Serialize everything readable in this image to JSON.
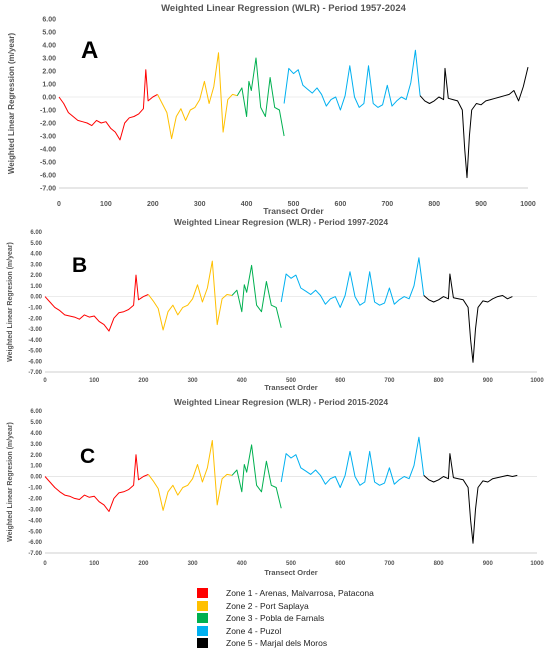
{
  "chart_data": [
    {
      "type": "line",
      "panel_letter": "A",
      "title": "Weighted Linear Regression (WLR) - Period 1957-2024",
      "xlabel": "Transect Order",
      "ylabel": "Weighted Linear Regression (m/year)",
      "xlim": [
        0,
        1000
      ],
      "ylim": [
        -7,
        6
      ],
      "x_ticks": [
        "0",
        "100",
        "200",
        "300",
        "400",
        "500",
        "600",
        "700",
        "800",
        "900",
        "1000"
      ],
      "y_ticks": [
        "6.00",
        "5.00",
        "4.00",
        "3.00",
        "2.00",
        "1.00",
        "0.00",
        "-1.00",
        "-2.00",
        "-3.00",
        "-4.00",
        "-5.00",
        "-6.00",
        "-7.00"
      ],
      "series": [
        {
          "name": "Zone 1 - Arenas, Malvarrosa, Patacona",
          "color": "#ff0000",
          "x": [
            0,
            10,
            20,
            30,
            40,
            50,
            60,
            70,
            80,
            90,
            100,
            110,
            120,
            130,
            140,
            150,
            160,
            170,
            180,
            185,
            190,
            200,
            210
          ],
          "y": [
            0.0,
            -0.5,
            -1.2,
            -1.5,
            -1.8,
            -1.9,
            -2.0,
            -2.2,
            -1.8,
            -2.0,
            -1.9,
            -2.4,
            -2.7,
            -3.3,
            -2.0,
            -1.6,
            -1.5,
            -1.3,
            -0.9,
            2.1,
            -0.3,
            0.0,
            0.2
          ]
        },
        {
          "name": "Zone 2 - Port Saplaya",
          "color": "#ffc000",
          "x": [
            210,
            220,
            230,
            240,
            250,
            260,
            270,
            280,
            290,
            300,
            310,
            320,
            330,
            340,
            350,
            360,
            370,
            380
          ],
          "y": [
            0.2,
            -0.5,
            -1.2,
            -3.2,
            -1.5,
            -0.9,
            -1.8,
            -1.0,
            -0.8,
            -0.2,
            1.2,
            -0.5,
            0.8,
            3.4,
            -2.7,
            -0.2,
            0.2,
            0.1
          ]
        },
        {
          "name": "Zone 3 - Pobla de Farnals",
          "color": "#00b050",
          "x": [
            380,
            390,
            400,
            405,
            410,
            420,
            430,
            440,
            450,
            460,
            470,
            480
          ],
          "y": [
            0.1,
            0.7,
            -1.5,
            1.2,
            0.5,
            3.0,
            -0.8,
            -1.5,
            1.5,
            -0.8,
            -1.0,
            -3.0
          ]
        },
        {
          "name": "Zone 4 - Puzol",
          "color": "#00b0f0",
          "x": [
            480,
            490,
            500,
            510,
            520,
            530,
            540,
            550,
            560,
            570,
            580,
            590,
            600,
            610,
            620,
            630,
            640,
            650,
            660,
            670,
            680,
            690,
            700,
            710,
            720,
            730,
            740,
            750,
            760,
            770
          ],
          "y": [
            -0.5,
            2.2,
            1.8,
            2.1,
            0.9,
            0.6,
            0.3,
            0.7,
            0.2,
            -0.7,
            -0.2,
            0.0,
            -1.0,
            0.1,
            2.4,
            0.0,
            -0.8,
            -0.5,
            2.4,
            -0.5,
            -0.8,
            -0.6,
            0.9,
            -0.7,
            -0.3,
            0.0,
            -0.2,
            1.1,
            3.6,
            0.1
          ]
        },
        {
          "name": "Zone 5 - Marjal dels Moros",
          "color": "#000000",
          "x": [
            770,
            780,
            790,
            800,
            810,
            820,
            823,
            830,
            840,
            850,
            860,
            865,
            870,
            875,
            880,
            890,
            900,
            910,
            920,
            930,
            940,
            950,
            960,
            970,
            980,
            990,
            1000
          ],
          "y": [
            0.1,
            -0.3,
            -0.5,
            -0.3,
            0.0,
            -0.2,
            2.2,
            -0.1,
            -0.2,
            -0.3,
            -1.0,
            -4.0,
            -6.2,
            -3.0,
            -1.0,
            -0.5,
            -0.6,
            -0.3,
            -0.2,
            -0.1,
            0.0,
            0.1,
            0.2,
            0.5,
            -0.3,
            0.8,
            2.3
          ]
        }
      ]
    },
    {
      "type": "line",
      "panel_letter": "B",
      "title": "Weighted Linear Regresion (WLR) - Period 1997-2024",
      "xlabel": "Transect Order",
      "ylabel": "Weighted Linear Regresion (m/year)",
      "xlim": [
        0,
        1000
      ],
      "ylim": [
        -7,
        6
      ],
      "x_ticks": [
        "0",
        "100",
        "200",
        "300",
        "400",
        "500",
        "600",
        "700",
        "800",
        "900",
        "1000"
      ],
      "y_ticks": [
        "6.00",
        "5.00",
        "4.00",
        "3.00",
        "2.00",
        "1.00",
        "0.00",
        "-1.00",
        "-2.00",
        "-3.00",
        "-4.00",
        "-5.00",
        "-6.00",
        "-7.00"
      ],
      "series": [
        {
          "name": "Zone 1 - Arenas, Malvarrosa, Patacona",
          "color": "#ff0000",
          "x": [
            0,
            10,
            20,
            30,
            40,
            50,
            60,
            70,
            80,
            90,
            100,
            110,
            120,
            130,
            140,
            150,
            160,
            170,
            180,
            185,
            190,
            200,
            210
          ],
          "y": [
            0.0,
            -0.5,
            -1.0,
            -1.3,
            -1.7,
            -1.8,
            -1.9,
            -2.1,
            -1.7,
            -1.9,
            -1.8,
            -2.3,
            -2.6,
            -3.2,
            -2.0,
            -1.5,
            -1.4,
            -1.2,
            -0.8,
            2.0,
            -0.3,
            0.0,
            0.2
          ]
        },
        {
          "name": "Zone 2 - Port Saplaya",
          "color": "#ffc000",
          "x": [
            210,
            220,
            230,
            240,
            250,
            260,
            270,
            280,
            290,
            300,
            310,
            320,
            330,
            340,
            350,
            360,
            370,
            380
          ],
          "y": [
            0.2,
            -0.4,
            -1.1,
            -3.1,
            -1.4,
            -0.8,
            -1.7,
            -1.0,
            -0.8,
            -0.2,
            1.1,
            -0.5,
            0.8,
            3.3,
            -2.6,
            -0.2,
            0.2,
            0.1
          ]
        },
        {
          "name": "Zone 3 - Pobla de Farnals",
          "color": "#00b050",
          "x": [
            380,
            390,
            400,
            405,
            410,
            420,
            430,
            440,
            450,
            460,
            470,
            480
          ],
          "y": [
            0.1,
            0.6,
            -1.4,
            1.1,
            0.4,
            2.9,
            -0.8,
            -1.4,
            1.4,
            -0.8,
            -1.0,
            -2.9
          ]
        },
        {
          "name": "Zone 4 - Puzol",
          "color": "#00b0f0",
          "x": [
            480,
            490,
            500,
            510,
            520,
            530,
            540,
            550,
            560,
            570,
            580,
            590,
            600,
            610,
            620,
            630,
            640,
            650,
            660,
            670,
            680,
            690,
            700,
            710,
            720,
            730,
            740,
            750,
            760,
            770
          ],
          "y": [
            -0.5,
            2.1,
            1.7,
            2.0,
            0.8,
            0.5,
            0.2,
            0.6,
            0.1,
            -0.7,
            -0.2,
            0.0,
            -1.0,
            0.1,
            2.3,
            0.0,
            -0.8,
            -0.5,
            2.3,
            -0.5,
            -0.8,
            -0.6,
            0.8,
            -0.7,
            -0.3,
            0.0,
            -0.2,
            1.0,
            3.6,
            0.1
          ]
        },
        {
          "name": "Zone 5 - Marjal dels Moros",
          "color": "#000000",
          "x": [
            770,
            780,
            790,
            800,
            810,
            820,
            823,
            830,
            840,
            850,
            860,
            865,
            870,
            875,
            880,
            890,
            900,
            910,
            920,
            930,
            940,
            950
          ],
          "y": [
            0.1,
            -0.3,
            -0.5,
            -0.3,
            0.0,
            -0.2,
            2.1,
            -0.1,
            -0.2,
            -0.3,
            -1.0,
            -4.0,
            -6.1,
            -3.0,
            -1.0,
            -0.4,
            -0.5,
            -0.2,
            0.0,
            0.1,
            -0.2,
            0.0
          ]
        }
      ]
    },
    {
      "type": "line",
      "panel_letter": "C",
      "title": "Weighted Linear Regresion (WLR) - Period 2015-2024",
      "xlabel": "Transect Order",
      "ylabel": "Weighted Linear Regresion (m/year)",
      "xlim": [
        0,
        1000
      ],
      "ylim": [
        -7,
        6
      ],
      "x_ticks": [
        "0",
        "100",
        "200",
        "300",
        "400",
        "500",
        "600",
        "700",
        "800",
        "900",
        "1000"
      ],
      "y_ticks": [
        "6.00",
        "5.00",
        "4.00",
        "3.00",
        "2.00",
        "1.00",
        "0.00",
        "-1.00",
        "-2.00",
        "-3.00",
        "-4.00",
        "-5.00",
        "-6.00",
        "-7.00"
      ],
      "series": [
        {
          "name": "Zone 1 - Arenas, Malvarrosa, Patacona",
          "color": "#ff0000",
          "x": [
            0,
            10,
            20,
            30,
            40,
            50,
            60,
            70,
            80,
            90,
            100,
            110,
            120,
            130,
            140,
            150,
            160,
            170,
            180,
            185,
            190,
            200,
            210
          ],
          "y": [
            0.0,
            -0.5,
            -1.0,
            -1.4,
            -1.7,
            -1.8,
            -2.0,
            -2.1,
            -1.7,
            -1.9,
            -1.8,
            -2.3,
            -2.6,
            -3.2,
            -2.0,
            -1.5,
            -1.4,
            -1.2,
            -0.8,
            2.0,
            -0.3,
            0.0,
            0.2
          ]
        },
        {
          "name": "Zone 2 - Port Saplaya",
          "color": "#ffc000",
          "x": [
            210,
            220,
            230,
            240,
            250,
            260,
            270,
            280,
            290,
            300,
            310,
            320,
            330,
            340,
            350,
            360,
            370,
            380
          ],
          "y": [
            0.2,
            -0.4,
            -1.1,
            -3.1,
            -1.4,
            -0.8,
            -1.7,
            -1.0,
            -0.8,
            -0.2,
            1.1,
            -0.5,
            0.8,
            3.3,
            -2.6,
            -0.2,
            0.2,
            0.1
          ]
        },
        {
          "name": "Zone 3 - Pobla de Farnals",
          "color": "#00b050",
          "x": [
            380,
            390,
            400,
            405,
            410,
            420,
            430,
            440,
            450,
            460,
            470,
            480
          ],
          "y": [
            0.1,
            0.6,
            -1.4,
            1.1,
            0.4,
            2.9,
            -0.8,
            -1.4,
            1.4,
            -0.8,
            -1.0,
            -2.9
          ]
        },
        {
          "name": "Zone 4 - Puzol",
          "color": "#00b0f0",
          "x": [
            480,
            490,
            500,
            510,
            520,
            530,
            540,
            550,
            560,
            570,
            580,
            590,
            600,
            610,
            620,
            630,
            640,
            650,
            660,
            670,
            680,
            690,
            700,
            710,
            720,
            730,
            740,
            750,
            760,
            770
          ],
          "y": [
            -0.5,
            2.1,
            1.7,
            2.0,
            0.8,
            0.5,
            0.2,
            0.6,
            0.1,
            -0.7,
            -0.2,
            0.0,
            -1.0,
            0.1,
            2.3,
            0.0,
            -0.8,
            -0.5,
            2.3,
            -0.5,
            -0.8,
            -0.6,
            0.8,
            -0.7,
            -0.3,
            0.0,
            -0.2,
            1.0,
            3.6,
            0.1
          ]
        },
        {
          "name": "Zone 5 - Marjal dels Moros",
          "color": "#000000",
          "x": [
            770,
            780,
            790,
            800,
            810,
            820,
            823,
            830,
            840,
            850,
            860,
            865,
            870,
            875,
            880,
            890,
            900,
            910,
            920,
            930,
            940,
            950,
            960
          ],
          "y": [
            0.1,
            -0.3,
            -0.5,
            -0.3,
            0.0,
            -0.2,
            2.1,
            -0.1,
            -0.2,
            -0.3,
            -1.0,
            -4.0,
            -6.1,
            -3.0,
            -1.0,
            -0.4,
            -0.5,
            -0.2,
            -0.1,
            0.0,
            0.1,
            0.0,
            0.1
          ]
        }
      ]
    }
  ],
  "legend": [
    {
      "label": "Zone 1 - Arenas, Malvarrosa, Patacona",
      "color": "#ff0000"
    },
    {
      "label": "Zone 2 - Port Saplaya",
      "color": "#ffc000"
    },
    {
      "label": "Zone 3 - Pobla de Farnals",
      "color": "#00b050"
    },
    {
      "label": "Zone 4 - Puzol",
      "color": "#00b0f0"
    },
    {
      "label": "Zone 5 - Marjal dels Moros",
      "color": "#000000"
    }
  ]
}
